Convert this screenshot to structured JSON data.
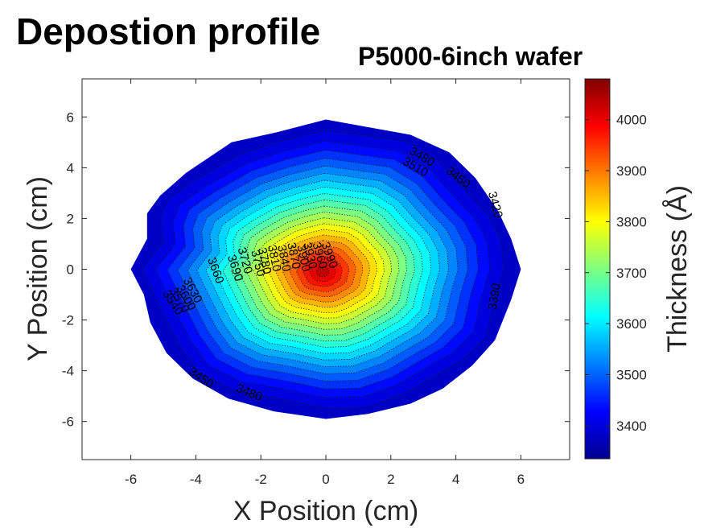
{
  "title": "Depostion profile",
  "subtitle": "P5000-6inch wafer",
  "chart_data": {
    "type": "heatmap",
    "subtype": "filled-contour",
    "title": "Depostion profile",
    "subtitle": "P5000-6inch wafer",
    "xlabel": "X Position (cm)",
    "ylabel": "Y Position (cm)",
    "xlim": [
      -7.5,
      7.5
    ],
    "ylim": [
      -7.5,
      7.5
    ],
    "xticks": [
      -6,
      -4,
      -2,
      0,
      2,
      4,
      6
    ],
    "yticks": [
      -6,
      -4,
      -2,
      0,
      2,
      4,
      6
    ],
    "grid": false,
    "colormap": "jet",
    "colorbar": {
      "label": "Thickness (Å)",
      "range": [
        3335,
        4080
      ],
      "ticks": [
        3400,
        3500,
        3600,
        3700,
        3800,
        3900,
        4000
      ],
      "colors": [
        "#00008f",
        "#0000ff",
        "#0080ff",
        "#00ffff",
        "#80ff80",
        "#ffff00",
        "#ff8000",
        "#ff0000",
        "#800000"
      ]
    },
    "center": {
      "x": -0.1,
      "y": -0.1,
      "peak_thickness": 4050
    },
    "wafer_boundary": [
      [
        0,
        5.9
      ],
      [
        2.6,
        5.3
      ],
      [
        3.8,
        4.6
      ],
      [
        4.6,
        3.6
      ],
      [
        5.3,
        2.3
      ],
      [
        5.7,
        1.2
      ],
      [
        6.0,
        0
      ],
      [
        5.7,
        -1.2
      ],
      [
        5.2,
        -2.8
      ],
      [
        4.5,
        -3.8
      ],
      [
        3.6,
        -4.7
      ],
      [
        2.6,
        -5.3
      ],
      [
        1.3,
        -5.7
      ],
      [
        0,
        -5.9
      ],
      [
        -1.6,
        -5.6
      ],
      [
        -3.0,
        -5.1
      ],
      [
        -4.1,
        -4.3
      ],
      [
        -4.9,
        -3.3
      ],
      [
        -5.4,
        -2.1
      ],
      [
        -5.6,
        -1.0
      ],
      [
        -6.0,
        0
      ],
      [
        -5.5,
        1.2
      ],
      [
        -5.5,
        2.2
      ],
      [
        -5.1,
        2.9
      ],
      [
        -4.3,
        3.8
      ],
      [
        -2.9,
        5.0
      ],
      [
        -1.5,
        5.4
      ]
    ],
    "contour_levels": [
      3390,
      3420,
      3450,
      3480,
      3510,
      3540,
      3570,
      3600,
      3630,
      3660,
      3690,
      3720,
      3750,
      3780,
      3810,
      3840,
      3870,
      3900,
      3930,
      3960,
      3990,
      4020
    ],
    "contour_labels": [
      {
        "text": "3480",
        "x": 2.9,
        "y": 4.3,
        "rotation": 30
      },
      {
        "text": "3510",
        "x": 2.7,
        "y": 3.9,
        "rotation": 30
      },
      {
        "text": "3450",
        "x": 4.0,
        "y": 3.5,
        "rotation": 38
      },
      {
        "text": "3420",
        "x": 5.1,
        "y": 2.5,
        "rotation": 75
      },
      {
        "text": "3390",
        "x": 5.3,
        "y": -1.1,
        "rotation": -80
      },
      {
        "text": "3450",
        "x": -3.9,
        "y": -4.4,
        "rotation": 35
      },
      {
        "text": "3480",
        "x": -2.4,
        "y": -5.0,
        "rotation": 22
      },
      {
        "text": "3660",
        "x": -3.5,
        "y": -0.1,
        "rotation": 70
      },
      {
        "text": "3690",
        "x": -2.9,
        "y": 0.0,
        "rotation": 72
      },
      {
        "text": "3630",
        "x": -4.2,
        "y": -0.9,
        "rotation": 62
      },
      {
        "text": "3600",
        "x": -4.4,
        "y": -1.2,
        "rotation": 60
      },
      {
        "text": "3570",
        "x": -4.6,
        "y": -1.3,
        "rotation": 58
      },
      {
        "text": "3540",
        "x": -4.8,
        "y": -1.4,
        "rotation": 56
      },
      {
        "text": "3720",
        "x": -2.6,
        "y": 0.3,
        "rotation": 74
      },
      {
        "text": "3750",
        "x": -2.2,
        "y": 0.2,
        "rotation": 76
      },
      {
        "text": "3780",
        "x": -2.0,
        "y": 0.3,
        "rotation": 78
      },
      {
        "text": "3810",
        "x": -1.7,
        "y": 0.4,
        "rotation": 78
      },
      {
        "text": "3840",
        "x": -1.4,
        "y": 0.4,
        "rotation": 78
      },
      {
        "text": "3870",
        "x": -1.1,
        "y": 0.5,
        "rotation": 78
      },
      {
        "text": "3900",
        "x": -0.8,
        "y": 0.4,
        "rotation": 78
      },
      {
        "text": "3930",
        "x": -0.6,
        "y": 0.5,
        "rotation": 76
      },
      {
        "text": "3960",
        "x": -0.3,
        "y": 0.5,
        "rotation": 74
      },
      {
        "text": "3990",
        "x": 0.0,
        "y": 0.5,
        "rotation": 70
      }
    ]
  }
}
